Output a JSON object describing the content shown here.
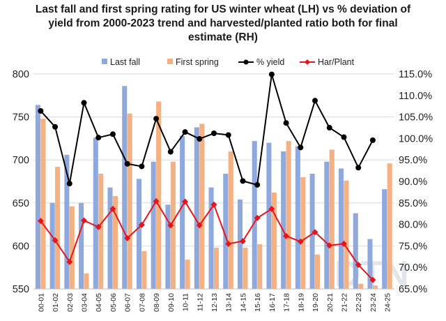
{
  "chart_data": {
    "type": "bar",
    "title": "Last fall and first spring rating for US winter wheat (LH) vs % deviation of yield from 2000-2023 trend and harvested/planted ratio both for final estimate (RH)",
    "categories": [
      "00-01",
      "01-02",
      "02-03",
      "03-04",
      "04-05",
      "05-06",
      "06-07",
      "07-08",
      "08-09",
      "09-10",
      "10-11",
      "11-12",
      "12-13",
      "13-14",
      "14-15",
      "15-16",
      "16-17",
      "17-18",
      "18-19",
      "19-20",
      "20-21",
      "21-22",
      "22-23",
      "23-24",
      "24-25"
    ],
    "left_axis": {
      "ylim": [
        550,
        800
      ],
      "ticks": [
        550,
        600,
        650,
        700,
        750,
        800
      ],
      "tick_labels": [
        "550",
        "600",
        "650",
        "700",
        "750",
        "800"
      ]
    },
    "right_axis": {
      "ylim": [
        65,
        115
      ],
      "ticks": [
        65,
        70,
        75,
        80,
        85,
        90,
        95,
        100,
        105,
        110,
        115
      ],
      "tick_labels": [
        "65.0%",
        "70.0%",
        "75.0%",
        "80.0%",
        "85.0%",
        "90.0%",
        "95.0%",
        "100.0%",
        "105.0%",
        "110.0%",
        "115.0%"
      ]
    },
    "series": [
      {
        "name": "Last fall",
        "kind": "bar",
        "axis": "left",
        "color": "#8fa9dc",
        "values": [
          764,
          650,
          706,
          650,
          726,
          668,
          786,
          678,
          698,
          648,
          728,
          738,
          668,
          684,
          654,
          722,
          720,
          710,
          716,
          684,
          698,
          690,
          638,
          608,
          666
        ]
      },
      {
        "name": "First spring",
        "kind": "bar",
        "axis": "left",
        "color": "#f4b183",
        "values": [
          748,
          692,
          646,
          568,
          684,
          658,
          754,
          594,
          768,
          698,
          584,
          742,
          598,
          710,
          598,
          602,
          662,
          722,
          680,
          590,
          712,
          676,
          556,
          554,
          696
        ]
      },
      {
        "name": "% yield",
        "kind": "line",
        "axis": "right",
        "color": "#000000",
        "values": [
          106.4,
          102.7,
          89.5,
          108.3,
          100.2,
          101.0,
          94.1,
          93.5,
          104.6,
          96.9,
          101.5,
          99.9,
          101.2,
          100.8,
          90.1,
          89.2,
          114.9,
          103.6,
          97.9,
          108.8,
          102.5,
          100.3,
          93.2,
          99.6,
          null
        ]
      },
      {
        "name": "Har/Plant",
        "kind": "line",
        "axis": "right",
        "color": "#e8141c",
        "values": [
          80.8,
          76.3,
          71.3,
          80.9,
          79.4,
          83.6,
          76.8,
          79.9,
          85.4,
          79.8,
          85.3,
          79.8,
          84.6,
          75.5,
          76.1,
          81.5,
          83.6,
          77.3,
          76.0,
          78.2,
          75.1,
          75.5,
          70.6,
          67.1,
          null
        ]
      }
    ]
  },
  "watermark": {
    "text": "DTN"
  }
}
